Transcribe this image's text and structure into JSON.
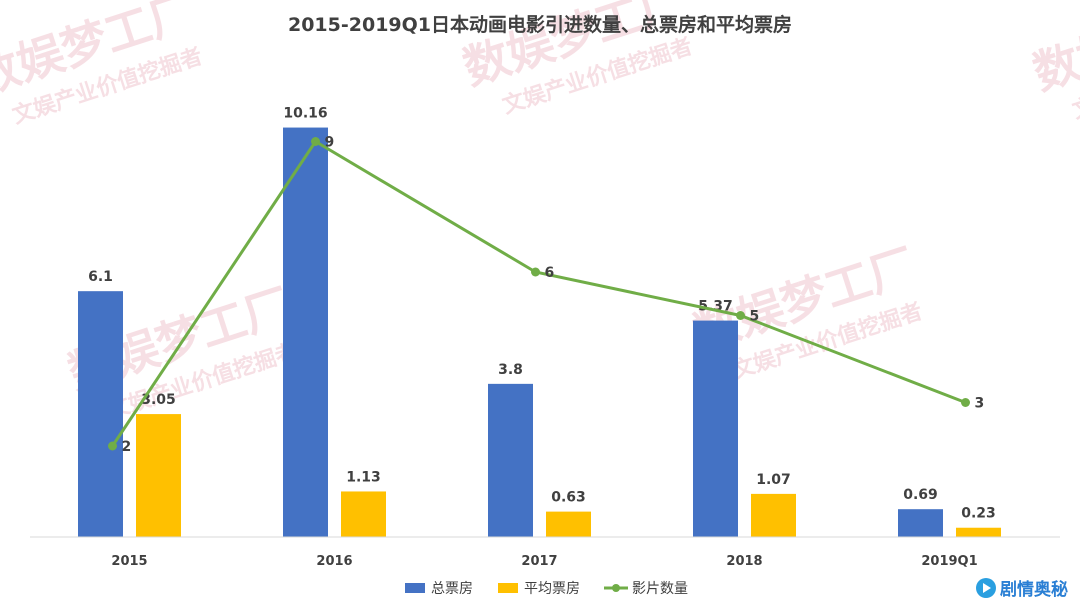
{
  "chart_data": {
    "type": "bar",
    "title": "2015-2019Q1日本动画电影引进数量、总票房和平均票房",
    "categories": [
      "2015",
      "2016",
      "2017",
      "2018",
      "2019Q1"
    ],
    "series": [
      {
        "name": "总票房",
        "type": "bar",
        "color": "#4472c4",
        "values": [
          6.1,
          10.16,
          3.8,
          5.37,
          0.69
        ]
      },
      {
        "name": "平均票房",
        "type": "bar",
        "color": "#ffc000",
        "values": [
          3.05,
          1.13,
          0.63,
          1.07,
          0.23
        ]
      },
      {
        "name": "影片数量",
        "type": "line",
        "color": "#70ad47",
        "values": [
          2,
          9,
          6,
          5,
          3
        ]
      }
    ],
    "xlabel": "",
    "ylabel": "",
    "grid": false,
    "legend_position": "bottom"
  },
  "watermark": {
    "main": "数娱梦工厂",
    "sub": "文娱产业价值挖掘者"
  },
  "brand": {
    "name": "剧情奥秘",
    "icon": "play-circle-icon"
  }
}
